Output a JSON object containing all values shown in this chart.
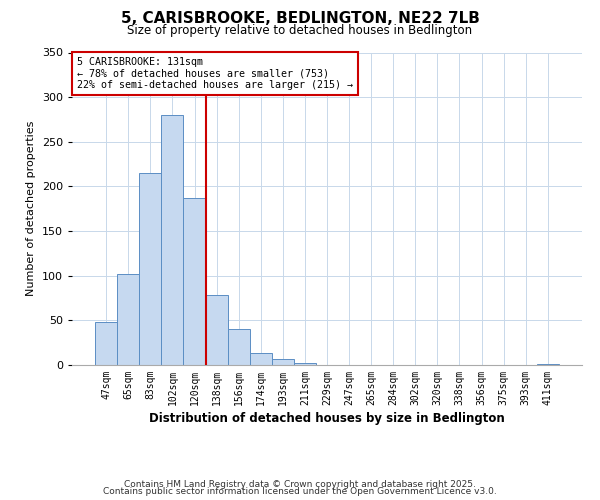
{
  "title": "5, CARISBROOKE, BEDLINGTON, NE22 7LB",
  "subtitle": "Size of property relative to detached houses in Bedlington",
  "xlabel": "Distribution of detached houses by size in Bedlington",
  "ylabel": "Number of detached properties",
  "bar_labels": [
    "47sqm",
    "65sqm",
    "83sqm",
    "102sqm",
    "120sqm",
    "138sqm",
    "156sqm",
    "174sqm",
    "193sqm",
    "211sqm",
    "229sqm",
    "247sqm",
    "265sqm",
    "284sqm",
    "302sqm",
    "320sqm",
    "338sqm",
    "356sqm",
    "375sqm",
    "393sqm",
    "411sqm"
  ],
  "bar_values": [
    48,
    102,
    215,
    280,
    187,
    78,
    40,
    14,
    7,
    2,
    0,
    0,
    0,
    0,
    0,
    0,
    0,
    0,
    0,
    0,
    1
  ],
  "bar_color": "#c6d9f0",
  "bar_edge_color": "#5b8ec4",
  "ylim": [
    0,
    350
  ],
  "yticks": [
    0,
    50,
    100,
    150,
    200,
    250,
    300,
    350
  ],
  "vline_position": 4.5,
  "vline_color": "#cc0000",
  "annotation_title": "5 CARISBROOKE: 131sqm",
  "annotation_line1": "← 78% of detached houses are smaller (753)",
  "annotation_line2": "22% of semi-detached houses are larger (215) →",
  "annotation_box_color": "#ffffff",
  "annotation_box_edge": "#cc0000",
  "footer1": "Contains HM Land Registry data © Crown copyright and database right 2025.",
  "footer2": "Contains public sector information licensed under the Open Government Licence v3.0.",
  "bg_color": "#ffffff",
  "grid_color": "#c8d8ea"
}
